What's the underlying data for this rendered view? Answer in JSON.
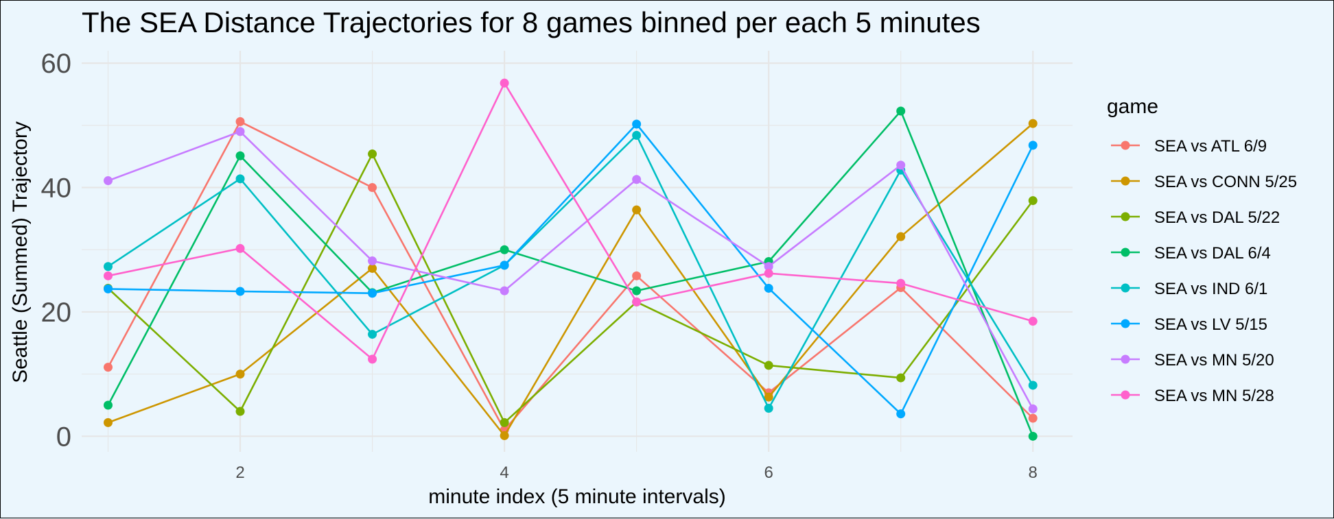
{
  "chart_data": {
    "type": "line",
    "title": "The SEA Distance Trajectories for 8 games binned per each 5 minutes",
    "xlabel": "minute index (5 minute intervals)",
    "ylabel": "Seattle (Summed) Trajectory",
    "x": [
      1,
      2,
      3,
      4,
      5,
      6,
      7,
      8
    ],
    "xlim": [
      0.8,
      8.3
    ],
    "ylim": [
      -2.5,
      62
    ],
    "xticks": [
      2,
      4,
      6,
      8
    ],
    "yticks": [
      0,
      20,
      40,
      60
    ],
    "grid": true,
    "legend": {
      "title": "game",
      "position": "right"
    },
    "series": [
      {
        "name": "SEA vs ATL 6/9",
        "color": "#F8766D",
        "values": [
          11.1,
          50.6,
          40.0,
          1.0,
          25.8,
          7.0,
          23.9,
          2.9
        ]
      },
      {
        "name": "SEA vs CONN 5/25",
        "color": "#CD9600",
        "values": [
          2.2,
          10.0,
          27.0,
          0.1,
          36.4,
          6.3,
          32.1,
          50.3
        ]
      },
      {
        "name": "SEA vs DAL 5/22",
        "color": "#7CAE00",
        "values": [
          23.8,
          4.0,
          45.4,
          2.2,
          21.6,
          11.4,
          9.4,
          37.9
        ]
      },
      {
        "name": "SEA vs DAL 6/4",
        "color": "#00BE67",
        "values": [
          5.0,
          45.1,
          23.1,
          30.0,
          23.4,
          28.1,
          52.3,
          0.0
        ]
      },
      {
        "name": "SEA vs IND 6/1",
        "color": "#00BFC4",
        "values": [
          27.3,
          41.4,
          16.4,
          27.5,
          48.4,
          4.5,
          42.8,
          8.2
        ]
      },
      {
        "name": "SEA vs LV 5/15",
        "color": "#00A9FF",
        "values": [
          23.7,
          23.3,
          23.0,
          27.5,
          50.2,
          23.8,
          3.6,
          46.8
        ]
      },
      {
        "name": "SEA vs MN 5/20",
        "color": "#C77CFF",
        "values": [
          41.1,
          49.0,
          28.2,
          23.4,
          41.3,
          27.3,
          43.6,
          4.4
        ]
      },
      {
        "name": "SEA vs MN 5/28",
        "color": "#FF61CC",
        "values": [
          25.8,
          30.2,
          12.4,
          56.8,
          21.6,
          26.2,
          24.6,
          18.5
        ]
      }
    ]
  }
}
